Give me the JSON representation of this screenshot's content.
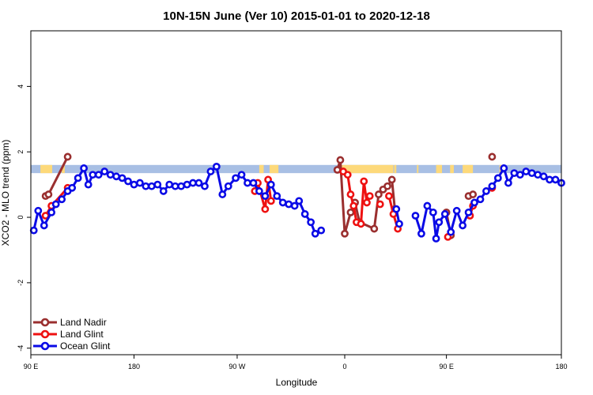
{
  "chart_data": {
    "type": "line",
    "title": "10N-15N June (Ver 10)   2015-01-01 to 2020-12-18",
    "xlabel": "Longitude",
    "ylabel": "XCO2 - MLO trend (ppm)",
    "xlim": [
      90,
      450
    ],
    "ylim": [
      -4.2,
      5.7
    ],
    "x_ticks": [
      {
        "value": 90,
        "label": "90 E"
      },
      {
        "value": 160,
        "label": "180"
      },
      {
        "value": 230,
        "label": "90 W"
      },
      {
        "value": 303,
        "label": "0"
      },
      {
        "value": 372,
        "label": "90 E"
      },
      {
        "value": 450,
        "label": "180"
      }
    ],
    "y_ticks": [
      {
        "value": -4,
        "label": "-4"
      },
      {
        "value": -2,
        "label": "-2"
      },
      {
        "value": 0,
        "label": "0"
      },
      {
        "value": 2,
        "label": "2"
      },
      {
        "value": 4,
        "label": "4"
      }
    ],
    "grid": false,
    "legend": "bottom-left",
    "land_band": {
      "y_low": 1.35,
      "y_high": 1.6,
      "ocean_color": "#a8bfe4",
      "land_color": "#fdd97a"
    },
    "land_segments": [
      [
        96.5,
        104.5
      ],
      [
        111,
        113
      ],
      [
        245,
        248
      ],
      [
        252,
        258
      ],
      [
        299,
        336
      ],
      [
        336.5,
        338
      ],
      [
        352,
        353
      ],
      [
        365,
        369
      ],
      [
        374.5,
        377
      ],
      [
        383,
        390
      ],
      [
        408,
        410
      ]
    ],
    "series": [
      {
        "name": "Land Nadir",
        "color": "#9a2f2f",
        "points": [
          [
            100,
            0.65
          ],
          [
            102,
            0.7
          ],
          [
            115,
            1.85
          ],
          [
            null,
            null
          ],
          [
            298,
            1.45
          ],
          [
            300,
            1.75
          ],
          [
            303,
            -0.5
          ],
          [
            307,
            0.15
          ],
          [
            310,
            0.45
          ],
          [
            313,
            -0.15
          ],
          [
            323,
            -0.35
          ],
          [
            326,
            0.7
          ],
          [
            329,
            0.85
          ],
          [
            332,
            0.95
          ],
          [
            335,
            1.15
          ],
          [
            337,
            0.25
          ],
          [
            null,
            null
          ],
          [
            372,
            0.15
          ],
          [
            375,
            -0.55
          ],
          [
            null,
            null
          ],
          [
            387,
            0.65
          ],
          [
            390,
            0.7
          ],
          [
            null,
            null
          ],
          [
            403,
            1.85
          ]
        ]
      },
      {
        "name": "Land Glint",
        "color": "#ee1111",
        "points": [
          [
            100,
            0.05
          ],
          [
            104,
            0.35
          ],
          [
            115,
            0.9
          ],
          [
            null,
            null
          ],
          [
            242,
            0.8
          ],
          [
            244,
            1.05
          ],
          [
            249,
            0.25
          ],
          [
            251,
            1.15
          ],
          [
            253,
            0.5
          ],
          [
            null,
            null
          ],
          [
            302,
            1.4
          ],
          [
            305,
            1.3
          ],
          [
            307,
            0.7
          ],
          [
            309,
            0.35
          ],
          [
            311,
            -0.15
          ],
          [
            314,
            -0.2
          ],
          [
            316,
            1.1
          ],
          [
            318,
            0.45
          ],
          [
            320,
            0.65
          ],
          [
            null,
            null
          ],
          [
            327,
            0.4
          ],
          [
            null,
            null
          ],
          [
            333,
            0.65
          ],
          [
            336,
            0.1
          ],
          [
            339,
            -0.35
          ],
          [
            null,
            null
          ],
          [
            373,
            -0.6
          ],
          [
            null,
            null
          ],
          [
            388,
            0.05
          ],
          [
            390,
            0.35
          ],
          [
            null,
            null
          ],
          [
            403,
            0.9
          ]
        ]
      },
      {
        "name": "Ocean Glint",
        "color": "#0a0ae6",
        "points": [
          [
            92,
            -0.4
          ],
          [
            95,
            0.2
          ],
          [
            99,
            -0.25
          ],
          [
            104,
            0.15
          ],
          [
            107,
            0.4
          ],
          [
            111,
            0.55
          ],
          [
            115,
            0.8
          ],
          [
            118,
            0.9
          ],
          [
            122,
            1.2
          ],
          [
            126,
            1.5
          ],
          [
            129,
            1.0
          ],
          [
            132,
            1.3
          ],
          [
            136,
            1.3
          ],
          [
            140,
            1.4
          ],
          [
            144,
            1.3
          ],
          [
            148,
            1.25
          ],
          [
            152,
            1.2
          ],
          [
            156,
            1.1
          ],
          [
            160,
            1.0
          ],
          [
            164,
            1.05
          ],
          [
            168,
            0.95
          ],
          [
            172,
            0.95
          ],
          [
            176,
            1.0
          ],
          [
            180,
            0.8
          ],
          [
            184,
            1.0
          ],
          [
            188,
            0.95
          ],
          [
            192,
            0.95
          ],
          [
            196,
            1.0
          ],
          [
            200,
            1.05
          ],
          [
            204,
            1.05
          ],
          [
            208,
            0.95
          ],
          [
            212,
            1.4
          ],
          [
            216,
            1.55
          ],
          [
            220,
            0.7
          ],
          [
            224,
            0.95
          ],
          [
            229,
            1.2
          ],
          [
            233,
            1.3
          ],
          [
            237,
            1.05
          ],
          [
            241,
            1.05
          ],
          [
            245,
            0.8
          ],
          [
            249,
            0.65
          ],
          [
            253,
            1.0
          ],
          [
            257,
            0.65
          ],
          [
            261,
            0.45
          ],
          [
            265,
            0.4
          ],
          [
            269,
            0.35
          ],
          [
            272,
            0.5
          ],
          [
            276,
            0.1
          ],
          [
            280,
            -0.15
          ],
          [
            283,
            -0.5
          ],
          [
            287,
            -0.4
          ],
          [
            null,
            null
          ],
          [
            338,
            0.25
          ],
          [
            340,
            -0.2
          ],
          [
            null,
            null
          ],
          [
            351,
            0.05
          ],
          [
            355,
            -0.5
          ],
          [
            359,
            0.35
          ],
          [
            363,
            0.15
          ],
          [
            365,
            -0.65
          ],
          [
            367,
            -0.15
          ],
          [
            371,
            0.1
          ],
          [
            375,
            -0.45
          ],
          [
            379,
            0.2
          ],
          [
            383,
            -0.25
          ],
          [
            387,
            0.15
          ],
          [
            391,
            0.45
          ],
          [
            395,
            0.55
          ],
          [
            399,
            0.8
          ],
          [
            403,
            0.95
          ],
          [
            407,
            1.2
          ],
          [
            411,
            1.5
          ],
          [
            414,
            1.05
          ],
          [
            418,
            1.35
          ],
          [
            422,
            1.3
          ],
          [
            426,
            1.4
          ],
          [
            430,
            1.35
          ],
          [
            434,
            1.3
          ],
          [
            438,
            1.25
          ],
          [
            442,
            1.15
          ],
          [
            446,
            1.15
          ],
          [
            450,
            1.05
          ]
        ]
      }
    ]
  }
}
